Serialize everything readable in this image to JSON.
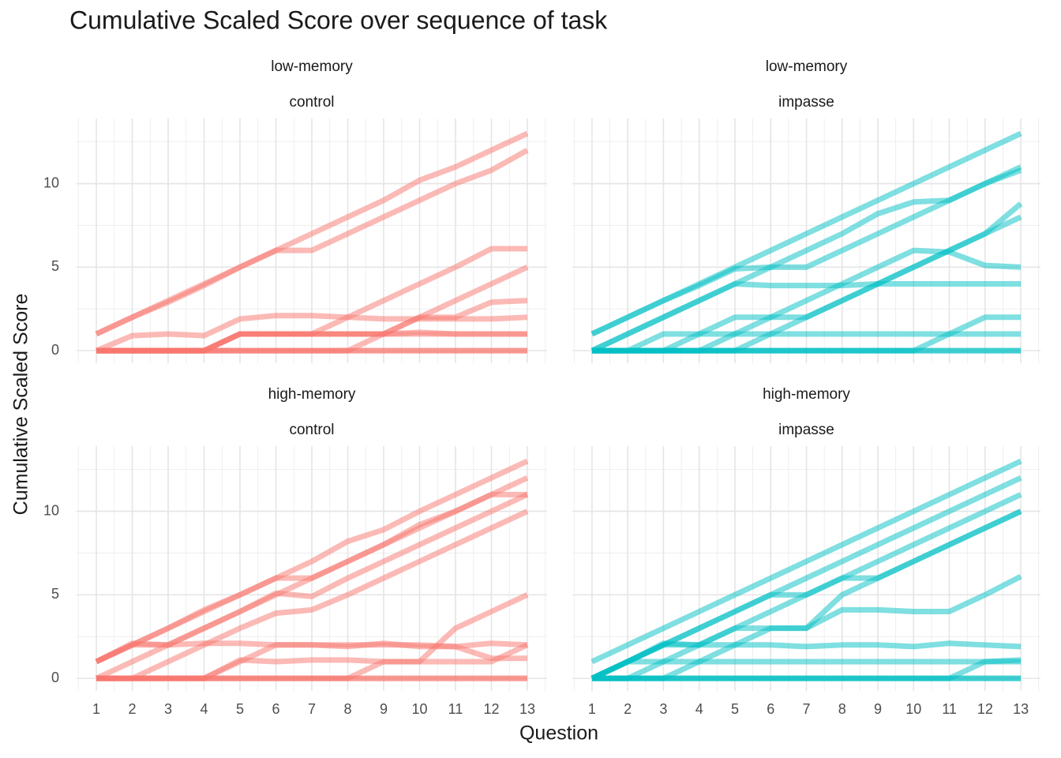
{
  "title": "Cumulative Scaled Score over sequence of task",
  "xlabel": "Question",
  "ylabel": "Cumulative Scaled Score",
  "chart_data": [
    {
      "type": "line",
      "facet": [
        "low-memory",
        "control"
      ],
      "x": [
        1,
        2,
        3,
        4,
        5,
        6,
        7,
        8,
        9,
        10,
        11,
        12,
        13
      ],
      "xlim": [
        0.45,
        13.55
      ],
      "xticks": [
        1,
        2,
        3,
        4,
        5,
        6,
        7,
        8,
        9,
        10,
        11,
        12,
        13
      ],
      "ylim": [
        -0.75,
        13.9
      ],
      "yticks": [
        0,
        5,
        10
      ],
      "grid": true,
      "series": [
        {
          "color": "#F8766D",
          "values": [
            1,
            2,
            3,
            4,
            5,
            6,
            7,
            8,
            9,
            10.2,
            11,
            12,
            13
          ]
        },
        {
          "color": "#F8766D",
          "values": [
            1,
            2,
            2.9,
            3.9,
            5,
            6,
            6,
            7,
            8,
            9,
            10,
            10.8,
            12
          ]
        },
        {
          "color": "#F8766D",
          "values": [
            0,
            0.9,
            1,
            0.9,
            1.9,
            2.1,
            2.1,
            2,
            1.9,
            1.9,
            1.9,
            1.9,
            2
          ]
        },
        {
          "color": "#F8766D",
          "values": [
            0,
            0,
            0,
            0,
            1,
            1,
            1,
            2,
            3,
            4,
            5,
            6.1,
            6.1
          ]
        },
        {
          "color": "#F8766D",
          "values": [
            0,
            0,
            0,
            0,
            0,
            0,
            0,
            0,
            1,
            2,
            3,
            4,
            5
          ]
        },
        {
          "color": "#F8766D",
          "values": [
            0,
            0,
            0,
            0,
            1,
            1,
            1,
            1,
            1,
            2,
            2,
            2.9,
            3
          ]
        },
        {
          "color": "#F8766D",
          "values": [
            0,
            0,
            0,
            0,
            1,
            1,
            1,
            1,
            1,
            1,
            1,
            1,
            1
          ]
        },
        {
          "color": "#F8766D",
          "values": [
            0,
            0,
            0,
            0,
            1,
            1,
            1,
            1,
            1,
            1.1,
            1,
            1,
            1
          ]
        },
        {
          "color": "#F8766D",
          "values": [
            0,
            0,
            0,
            0,
            0,
            0,
            0,
            0,
            0,
            0,
            0,
            0,
            0
          ]
        },
        {
          "color": "#F8766D",
          "values": [
            0,
            0,
            0,
            0,
            0,
            0,
            0,
            0,
            0,
            0,
            0,
            0,
            0
          ]
        }
      ]
    },
    {
      "type": "line",
      "facet": [
        "low-memory",
        "impasse"
      ],
      "x": [
        1,
        2,
        3,
        4,
        5,
        6,
        7,
        8,
        9,
        10,
        11,
        12,
        13
      ],
      "xlim": [
        0.45,
        13.55
      ],
      "xticks": [
        1,
        2,
        3,
        4,
        5,
        6,
        7,
        8,
        9,
        10,
        11,
        12,
        13
      ],
      "ylim": [
        -0.75,
        13.9
      ],
      "yticks": [
        0,
        5,
        10
      ],
      "grid": true,
      "series": [
        {
          "color": "#00BFC4",
          "values": [
            1,
            2,
            3,
            4,
            5,
            6,
            7,
            8,
            9,
            10,
            11,
            12,
            13
          ]
        },
        {
          "color": "#00BFC4",
          "values": [
            1,
            2,
            3,
            3.9,
            4.9,
            5,
            5,
            6,
            7,
            8,
            9,
            10,
            10.8
          ]
        },
        {
          "color": "#00BFC4",
          "values": [
            0,
            1,
            2,
            3,
            4,
            5,
            6,
            7,
            8.2,
            8.9,
            9,
            10,
            11
          ]
        },
        {
          "color": "#00BFC4",
          "values": [
            0,
            1,
            2,
            3,
            4,
            3.9,
            3.9,
            3.9,
            4,
            4,
            4,
            4,
            4
          ]
        },
        {
          "color": "#00BFC4",
          "values": [
            0,
            0,
            0,
            1,
            2,
            2,
            2,
            3,
            4,
            5,
            6,
            7,
            8
          ]
        },
        {
          "color": "#00BFC4",
          "values": [
            0,
            0,
            1,
            1,
            1,
            2,
            3,
            4,
            5,
            6,
            5.9,
            5.1,
            5
          ]
        },
        {
          "color": "#00BFC4",
          "values": [
            0,
            0,
            0,
            0,
            0,
            1,
            2,
            3,
            4,
            5,
            6,
            7,
            8.8
          ]
        },
        {
          "color": "#00BFC4",
          "values": [
            0,
            0,
            0,
            0,
            0,
            0,
            0,
            0,
            0,
            0,
            1,
            2,
            2
          ]
        },
        {
          "color": "#00BFC4",
          "values": [
            0,
            0,
            0,
            0,
            1,
            1,
            1,
            1,
            1,
            1,
            1,
            1,
            1
          ]
        },
        {
          "color": "#00BFC4",
          "values": [
            0,
            0,
            0,
            0,
            0,
            0,
            0,
            0,
            0,
            0,
            0,
            0,
            0
          ]
        },
        {
          "color": "#00BFC4",
          "values": [
            0,
            0,
            0,
            0,
            0,
            0,
            0,
            0,
            0,
            0,
            0,
            0,
            0
          ]
        }
      ]
    },
    {
      "type": "line",
      "facet": [
        "high-memory",
        "control"
      ],
      "x": [
        1,
        2,
        3,
        4,
        5,
        6,
        7,
        8,
        9,
        10,
        11,
        12,
        13
      ],
      "xlim": [
        0.45,
        13.55
      ],
      "xticks": [
        1,
        2,
        3,
        4,
        5,
        6,
        7,
        8,
        9,
        10,
        11,
        12,
        13
      ],
      "ylim": [
        -0.75,
        13.9
      ],
      "yticks": [
        0,
        5,
        10
      ],
      "grid": true,
      "series": [
        {
          "color": "#F8766D",
          "values": [
            1,
            2,
            3,
            4,
            5,
            6,
            7,
            8.2,
            8.9,
            10,
            11,
            12,
            13
          ]
        },
        {
          "color": "#F8766D",
          "values": [
            0,
            1,
            2,
            3,
            4,
            5,
            6,
            7,
            8,
            9.2,
            10,
            11,
            12
          ]
        },
        {
          "color": "#F8766D",
          "values": [
            1,
            2,
            3,
            4.1,
            5,
            6,
            6,
            7,
            8,
            9,
            10,
            11,
            11
          ]
        },
        {
          "color": "#F8766D",
          "values": [
            1,
            2,
            2,
            3,
            4,
            5.1,
            4.9,
            6,
            7,
            8,
            9,
            10,
            11
          ]
        },
        {
          "color": "#F8766D",
          "values": [
            0,
            0,
            1,
            2,
            3,
            3.9,
            4.1,
            5,
            6,
            7,
            8,
            9,
            10
          ]
        },
        {
          "color": "#F8766D",
          "values": [
            1,
            2.1,
            2,
            2.1,
            2.1,
            2,
            2,
            1.9,
            2.1,
            1.9,
            1.9,
            2.1,
            2
          ]
        },
        {
          "color": "#F8766D",
          "values": [
            0,
            0,
            0,
            0,
            0,
            0,
            0,
            0,
            1,
            1,
            3,
            4,
            5
          ]
        },
        {
          "color": "#F8766D",
          "values": [
            0,
            0,
            0,
            0,
            1.1,
            1,
            1.1,
            1.1,
            1,
            1,
            1,
            1,
            2
          ]
        },
        {
          "color": "#F8766D",
          "values": [
            0,
            0,
            0,
            0,
            1,
            2,
            2,
            2,
            2,
            2,
            1.9,
            1.2,
            1.2
          ]
        },
        {
          "color": "#F8766D",
          "values": [
            0,
            0,
            0,
            0,
            0,
            0,
            0,
            0,
            0,
            0,
            0,
            0,
            0
          ]
        },
        {
          "color": "#F8766D",
          "values": [
            0,
            0,
            0,
            0,
            0,
            0,
            0,
            0,
            0,
            0,
            0,
            0,
            0
          ]
        }
      ]
    },
    {
      "type": "line",
      "facet": [
        "high-memory",
        "impasse"
      ],
      "x": [
        1,
        2,
        3,
        4,
        5,
        6,
        7,
        8,
        9,
        10,
        11,
        12,
        13
      ],
      "xlim": [
        0.45,
        13.55
      ],
      "xticks": [
        1,
        2,
        3,
        4,
        5,
        6,
        7,
        8,
        9,
        10,
        11,
        12,
        13
      ],
      "ylim": [
        -0.75,
        13.9
      ],
      "yticks": [
        0,
        5,
        10
      ],
      "grid": true,
      "series": [
        {
          "color": "#00BFC4",
          "values": [
            1,
            2,
            3,
            4,
            5,
            6,
            7,
            8,
            9,
            10,
            11,
            12,
            13
          ]
        },
        {
          "color": "#00BFC4",
          "values": [
            0,
            1,
            2,
            3,
            4,
            5,
            6,
            7,
            8,
            9,
            10,
            11,
            12
          ]
        },
        {
          "color": "#00BFC4",
          "values": [
            0,
            1,
            2,
            3,
            4,
            5,
            5,
            6,
            7,
            8,
            9,
            10,
            11
          ]
        },
        {
          "color": "#00BFC4",
          "values": [
            0,
            0,
            1,
            2,
            3,
            4,
            5,
            6,
            6,
            7,
            8,
            9,
            10
          ]
        },
        {
          "color": "#00BFC4",
          "values": [
            0,
            0,
            0,
            1,
            2,
            3,
            3,
            5,
            6,
            7,
            8,
            9,
            10
          ]
        },
        {
          "color": "#00BFC4",
          "values": [
            0,
            1,
            2,
            2,
            3,
            3,
            3,
            4.1,
            4.1,
            4,
            4,
            5,
            6.1
          ]
        },
        {
          "color": "#00BFC4",
          "values": [
            0,
            1,
            2.1,
            2,
            2,
            2,
            1.9,
            2,
            2,
            1.9,
            2.1,
            2,
            1.9
          ]
        },
        {
          "color": "#00BFC4",
          "values": [
            0,
            1,
            1,
            1,
            1,
            1,
            1,
            1,
            1,
            1,
            1,
            1,
            1.1
          ]
        },
        {
          "color": "#00BFC4",
          "values": [
            0,
            0,
            0,
            0,
            0,
            0,
            0,
            0,
            0,
            0,
            0,
            1,
            1
          ]
        },
        {
          "color": "#00BFC4",
          "values": [
            0,
            0,
            0,
            0,
            0,
            0,
            0,
            0,
            0,
            0,
            0,
            0,
            0
          ]
        },
        {
          "color": "#00BFC4",
          "values": [
            0,
            0,
            0,
            0,
            0,
            0,
            0,
            0,
            0,
            0,
            0,
            0,
            0
          ]
        }
      ]
    }
  ]
}
